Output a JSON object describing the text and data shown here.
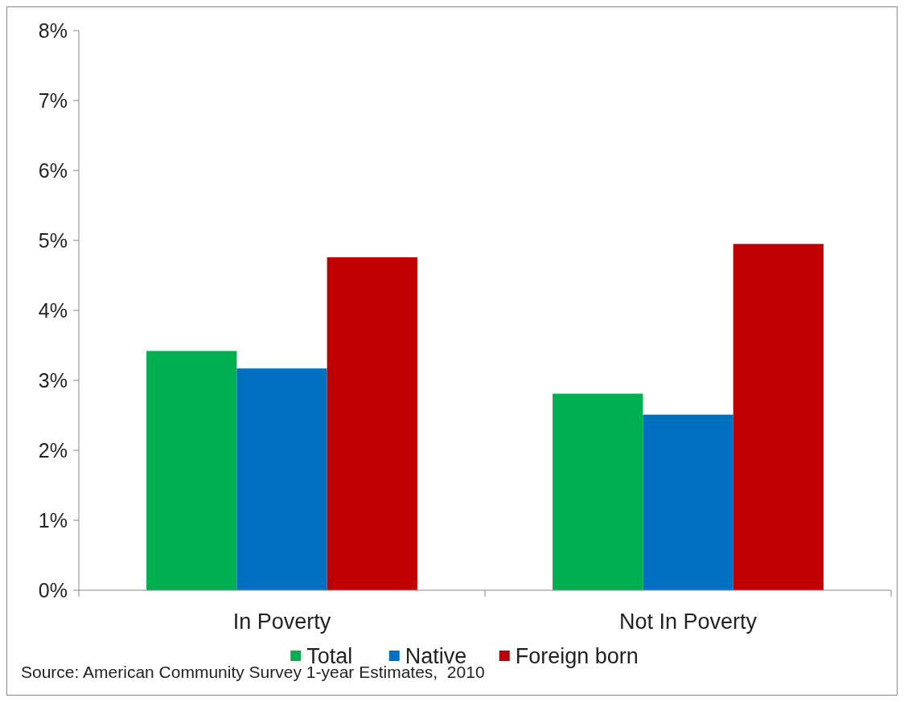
{
  "chart_data": {
    "type": "bar",
    "categories": [
      "In Poverty",
      "Not In Poverty"
    ],
    "series": [
      {
        "name": "Total",
        "color": "#00b050",
        "values": [
          3.42,
          2.81
        ]
      },
      {
        "name": "Native",
        "color": "#0070c0",
        "values": [
          3.17,
          2.51
        ]
      },
      {
        "name": "Foreign born",
        "color": "#c00000",
        "values": [
          4.76,
          4.95
        ]
      }
    ],
    "ylim": [
      0,
      8
    ],
    "yticks": [
      {
        "value": 0,
        "label": "0%"
      },
      {
        "value": 1,
        "label": "1%"
      },
      {
        "value": 2,
        "label": "2%"
      },
      {
        "value": 3,
        "label": "3%"
      },
      {
        "value": 4,
        "label": "4%"
      },
      {
        "value": 5,
        "label": "5%"
      },
      {
        "value": 6,
        "label": "6%"
      },
      {
        "value": 7,
        "label": "7%"
      },
      {
        "value": 8,
        "label": "8%"
      }
    ],
    "legend": "bottom",
    "annotations": [
      "Source: American Community Survey 1-year Estimates,  2010"
    ]
  }
}
